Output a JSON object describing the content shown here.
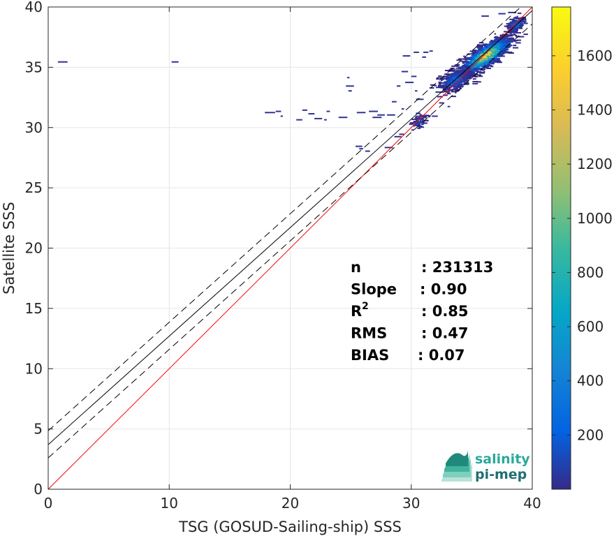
{
  "chart_data": {
    "type": "heatmap",
    "xlabel": "TSG (GOSUD-Sailing-ship) SSS",
    "ylabel": "Satellite SSS",
    "xlim": [
      0,
      40
    ],
    "ylim": [
      0,
      40
    ],
    "xticks": [
      "0",
      "10",
      "20",
      "30",
      "40"
    ],
    "yticks": [
      "0",
      "5",
      "10",
      "15",
      "20",
      "25",
      "30",
      "35",
      "40"
    ],
    "grid": true,
    "colorbar": {
      "range": [
        0,
        1780
      ],
      "ticks": [
        "200",
        "400",
        "600",
        "800",
        "1000",
        "1200",
        "1400",
        "1600"
      ],
      "tick_values": [
        200,
        400,
        600,
        800,
        1000,
        1200,
        1400,
        1600
      ],
      "colormap": "parula"
    },
    "lines": [
      {
        "name": "identity",
        "slope": 1.0,
        "intercept": 0.0,
        "color": "#ff0000",
        "style": "solid"
      },
      {
        "name": "regression",
        "slope": 0.9,
        "intercept": 3.7,
        "color": "#000000",
        "style": "solid"
      },
      {
        "name": "regression-upper",
        "slope": 0.9,
        "intercept": 4.85,
        "color": "#000000",
        "style": "dashed"
      },
      {
        "name": "regression-lower",
        "slope": 0.9,
        "intercept": 2.6,
        "color": "#000000",
        "style": "dashed"
      }
    ],
    "density_clusters": [
      {
        "x": 36.0,
        "y": 36.0,
        "sx": 2.0,
        "sy": 1.5,
        "rho": 0.8,
        "peak": 1780,
        "n": 1400
      },
      {
        "x": 33.5,
        "y": 34.0,
        "sx": 1.3,
        "sy": 1.0,
        "rho": 0.5,
        "peak": 300,
        "n": 320
      },
      {
        "x": 38.5,
        "y": 38.6,
        "sx": 0.7,
        "sy": 0.7,
        "rho": 0.6,
        "peak": 350,
        "n": 160
      },
      {
        "x": 30.5,
        "y": 30.5,
        "sx": 0.7,
        "sy": 0.7,
        "rho": 0.5,
        "peak": 120,
        "n": 60
      }
    ],
    "sparse_points": [
      [
        0.8,
        35.5
      ],
      [
        10.2,
        35.5
      ],
      [
        17.9,
        31.3
      ],
      [
        21.0,
        31.5
      ],
      [
        21.5,
        31.2
      ],
      [
        22.0,
        30.8
      ],
      [
        23.0,
        31.4
      ],
      [
        24.0,
        30.9
      ],
      [
        25.5,
        31.3
      ],
      [
        26.5,
        31.4
      ],
      [
        20.5,
        30.7
      ],
      [
        22.8,
        30.7
      ],
      [
        25.7,
        28.3
      ],
      [
        26.2,
        28.1
      ],
      [
        25.4,
        28.5
      ],
      [
        24.7,
        34.2
      ],
      [
        24.6,
        33.5
      ],
      [
        24.8,
        33.1
      ],
      [
        29.2,
        34.7
      ],
      [
        30.0,
        34.3
      ],
      [
        28.8,
        33.5
      ],
      [
        29.5,
        33.8
      ],
      [
        30.4,
        32.4
      ],
      [
        28.4,
        32.2
      ],
      [
        31.0,
        36.3
      ],
      [
        30.2,
        36.3
      ],
      [
        29.3,
        36.0
      ],
      [
        30.9,
        35.9
      ],
      [
        31.5,
        36.4
      ],
      [
        37.2,
        39.5
      ],
      [
        38.0,
        39.6
      ],
      [
        35.8,
        39.3
      ],
      [
        28.0,
        31.1
      ],
      [
        29.2,
        31.6
      ],
      [
        28.6,
        29.3
      ],
      [
        27.8,
        28.4
      ],
      [
        29.0,
        29.5
      ],
      [
        27.2,
        31.1
      ],
      [
        26.8,
        30.9
      ],
      [
        19.2,
        31.0
      ],
      [
        18.8,
        31.4
      ],
      [
        32.0,
        33.0
      ],
      [
        31.7,
        31.0
      ],
      [
        32.3,
        32.1
      ],
      [
        33.0,
        31.8
      ],
      [
        30.3,
        33.1
      ]
    ]
  },
  "stats": [
    {
      "label": "n",
      "sup": "",
      "value": ": 231313"
    },
    {
      "label": "Slope",
      "sup": "",
      "value": ": 0.90"
    },
    {
      "label": "R",
      "sup": "2",
      "value": ": 0.85"
    },
    {
      "label": "RMS",
      "sup": "",
      "value": ": 0.47"
    },
    {
      "label": "BIAS",
      "sup": "",
      "value": ": 0.07"
    }
  ],
  "logo": {
    "line1": "salinity",
    "line2": "pi-mep",
    "color1": "#2ba99a",
    "color2": "#1e6f73"
  }
}
